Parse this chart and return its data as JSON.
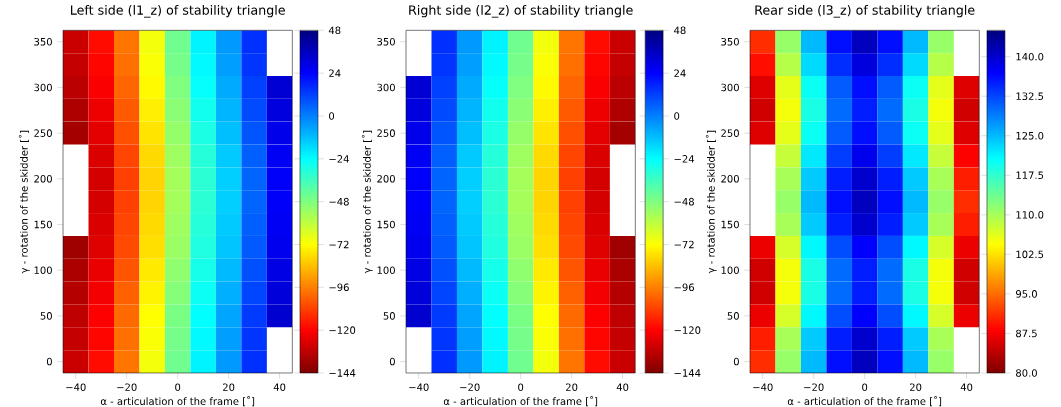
{
  "chart_data": [
    {
      "type": "heatmap",
      "title": "Left side (l1_z) of stability triangle",
      "xlabel": "α - articulation of the frame [˚]",
      "ylabel": "γ - rotation of the skidder [˚]",
      "categories": [
        "−40",
        null,
        "−20",
        null,
        "0",
        null,
        "20",
        null,
        "40"
      ],
      "y_categories": [
        "350",
        null,
        "300",
        null,
        "250",
        null,
        "200",
        null,
        "150",
        null,
        "100",
        null,
        "50",
        null,
        "0"
      ],
      "clim": [
        -144,
        48
      ],
      "cticks": [
        {
          "value": -144,
          "label": "−144"
        },
        {
          "value": -120,
          "label": "−120"
        },
        {
          "value": -96,
          "label": "−96"
        },
        {
          "value": -72,
          "label": "−72"
        },
        {
          "value": -48,
          "label": "−48"
        },
        {
          "value": -24,
          "label": "−24"
        },
        0,
        24,
        48
      ],
      "cells": [
        [
          -130,
          -118,
          -98,
          -70,
          -45,
          -22,
          -5,
          15,
          null
        ],
        [
          -131,
          -119,
          -99,
          -71,
          -46,
          -23,
          -6,
          14,
          null
        ],
        [
          -133,
          -121,
          -101,
          -73,
          -48,
          -25,
          -8,
          12,
          32
        ],
        [
          -135,
          -123,
          -103,
          -75,
          -50,
          -27,
          -10,
          10,
          30
        ],
        [
          -137,
          -125,
          -105,
          -77,
          -52,
          -29,
          -12,
          8,
          28
        ],
        [
          null,
          -127,
          -107,
          -79,
          -54,
          -31,
          -14,
          6,
          26
        ],
        [
          null,
          -128,
          -108,
          -80,
          -55,
          -32,
          -15,
          5,
          25
        ],
        [
          null,
          -128,
          -108,
          -80,
          -55,
          -32,
          -15,
          5,
          25
        ],
        [
          null,
          -127,
          -107,
          -79,
          -54,
          -31,
          -14,
          6,
          26
        ],
        [
          -138,
          -126,
          -106,
          -78,
          -53,
          -30,
          -13,
          7,
          27
        ],
        [
          -136,
          -124,
          -104,
          -76,
          -51,
          -28,
          -11,
          9,
          29
        ],
        [
          -134,
          -122,
          -102,
          -74,
          -49,
          -26,
          -9,
          11,
          31
        ],
        [
          -132,
          -120,
          -100,
          -72,
          -47,
          -24,
          -7,
          13,
          33
        ],
        [
          -131,
          -119,
          -99,
          -71,
          -46,
          -23,
          -6,
          14,
          null
        ],
        [
          -130,
          -118,
          -98,
          -70,
          -45,
          -22,
          -5,
          15,
          null
        ]
      ]
    },
    {
      "type": "heatmap",
      "title": "Right side (l2_z) of stability triangle",
      "xlabel": "α - articulation of the frame [˚]",
      "ylabel": "γ - rotation of the skidder [˚]",
      "categories": [
        "−40",
        null,
        "−20",
        null,
        "0",
        null,
        "20",
        null,
        "40"
      ],
      "y_categories": [
        "350",
        null,
        "300",
        null,
        "250",
        null,
        "200",
        null,
        "150",
        null,
        "100",
        null,
        "50",
        null,
        "0"
      ],
      "clim": [
        -144,
        48
      ],
      "cticks": [
        {
          "value": -144,
          "label": "−144"
        },
        {
          "value": -120,
          "label": "−120"
        },
        {
          "value": -96,
          "label": "−96"
        },
        {
          "value": -72,
          "label": "−72"
        },
        {
          "value": -48,
          "label": "−48"
        },
        {
          "value": -24,
          "label": "−24"
        },
        0,
        24,
        48
      ],
      "cells": [
        [
          null,
          15,
          -5,
          -22,
          -45,
          -70,
          -98,
          -118,
          -130
        ],
        [
          null,
          14,
          -6,
          -23,
          -46,
          -71,
          -99,
          -119,
          -131
        ],
        [
          32,
          12,
          -8,
          -25,
          -48,
          -73,
          -101,
          -121,
          -133
        ],
        [
          30,
          10,
          -10,
          -27,
          -50,
          -75,
          -103,
          -123,
          -135
        ],
        [
          28,
          8,
          -12,
          -29,
          -52,
          -77,
          -105,
          -125,
          -137
        ],
        [
          26,
          6,
          -14,
          -31,
          -54,
          -79,
          -107,
          -127,
          null
        ],
        [
          25,
          5,
          -15,
          -32,
          -55,
          -80,
          -108,
          -128,
          null
        ],
        [
          25,
          5,
          -15,
          -32,
          -55,
          -80,
          -108,
          -128,
          null
        ],
        [
          26,
          6,
          -14,
          -31,
          -54,
          -79,
          -107,
          -127,
          null
        ],
        [
          27,
          7,
          -13,
          -30,
          -53,
          -78,
          -106,
          -126,
          -138
        ],
        [
          29,
          9,
          -11,
          -28,
          -51,
          -76,
          -104,
          -124,
          -136
        ],
        [
          31,
          11,
          -9,
          -26,
          -49,
          -74,
          -102,
          -122,
          -134
        ],
        [
          33,
          13,
          -7,
          -24,
          -47,
          -72,
          -100,
          -120,
          -132
        ],
        [
          null,
          14,
          -6,
          -23,
          -46,
          -71,
          -99,
          -119,
          -131
        ],
        [
          null,
          15,
          -5,
          -22,
          -45,
          -70,
          -98,
          -118,
          -130
        ]
      ]
    },
    {
      "type": "heatmap",
      "title": "Rear side (l3_z) of stability triangle",
      "xlabel": "α - articulation of the frame [˚]",
      "ylabel": "γ - rotation of the skidder [˚]",
      "categories": [
        "−40",
        null,
        "−20",
        null,
        "0",
        null,
        "20",
        null,
        "40"
      ],
      "y_categories": [
        "350",
        null,
        "300",
        null,
        "250",
        null,
        "200",
        null,
        "150",
        null,
        "100",
        null,
        "50",
        null,
        "0"
      ],
      "clim": [
        80,
        145
      ],
      "cticks": [
        {
          "value": 80,
          "label": "80.0"
        },
        87.5,
        {
          "value": 95,
          "label": "95.0"
        },
        102.5,
        {
          "value": 110,
          "label": "110.0"
        },
        117.5,
        {
          "value": 125,
          "label": "125.0"
        },
        132.5,
        {
          "value": 140,
          "label": "140.0"
        }
      ],
      "cells": [
        [
          91,
          111,
          125,
          136,
          141,
          136,
          125,
          111,
          null
        ],
        [
          89,
          109,
          123,
          134,
          139,
          134,
          123,
          109,
          null
        ],
        [
          86,
          106,
          120,
          131,
          136,
          131,
          120,
          106,
          86
        ],
        [
          85,
          105,
          119,
          130,
          135,
          130,
          119,
          105,
          85
        ],
        [
          86,
          106,
          120,
          131,
          136,
          131,
          120,
          106,
          86
        ],
        [
          null,
          108,
          122,
          133,
          138,
          133,
          122,
          108,
          88
        ],
        [
          null,
          110,
          124,
          135,
          140,
          135,
          124,
          110,
          90
        ],
        [
          null,
          111,
          125,
          136,
          141,
          136,
          125,
          111,
          91
        ],
        [
          null,
          110,
          124,
          135,
          140,
          135,
          124,
          110,
          90
        ],
        [
          87,
          107,
          121,
          132,
          137,
          132,
          121,
          107,
          87
        ],
        [
          85,
          105,
          119,
          130,
          135,
          130,
          119,
          105,
          85
        ],
        [
          85,
          105,
          119,
          130,
          135,
          130,
          119,
          105,
          85
        ],
        [
          87,
          107,
          121,
          132,
          137,
          132,
          121,
          107,
          87
        ],
        [
          90,
          110,
          124,
          135,
          140,
          135,
          124,
          110,
          null
        ],
        [
          91,
          111,
          125,
          136,
          141,
          136,
          125,
          111,
          null
        ]
      ]
    }
  ]
}
